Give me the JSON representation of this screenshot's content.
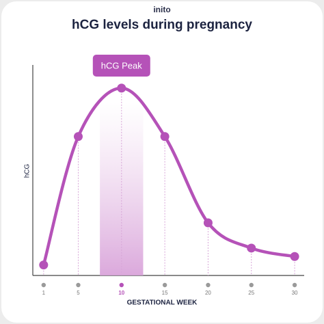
{
  "brand": "inito",
  "chart_data": {
    "type": "line",
    "title": "hCG levels during pregnancy",
    "xlabel": "GESTATIONAL WEEK",
    "ylabel": "hCG",
    "annotation": "hCG Peak",
    "x": [
      1,
      5,
      10,
      15,
      20,
      25,
      30
    ],
    "series": [
      {
        "name": "hCG",
        "color": "#b552b8",
        "values": [
          5,
          66,
          89,
          66,
          25,
          13,
          9
        ]
      }
    ],
    "xlim": [
      -0.25,
      31.1
    ],
    "ylim": [
      0,
      100
    ],
    "xticks": [
      1,
      5,
      10,
      15,
      20,
      25,
      30
    ],
    "highlight_x": 10,
    "band": [
      7.5,
      12.5
    ],
    "smooth": true
  }
}
